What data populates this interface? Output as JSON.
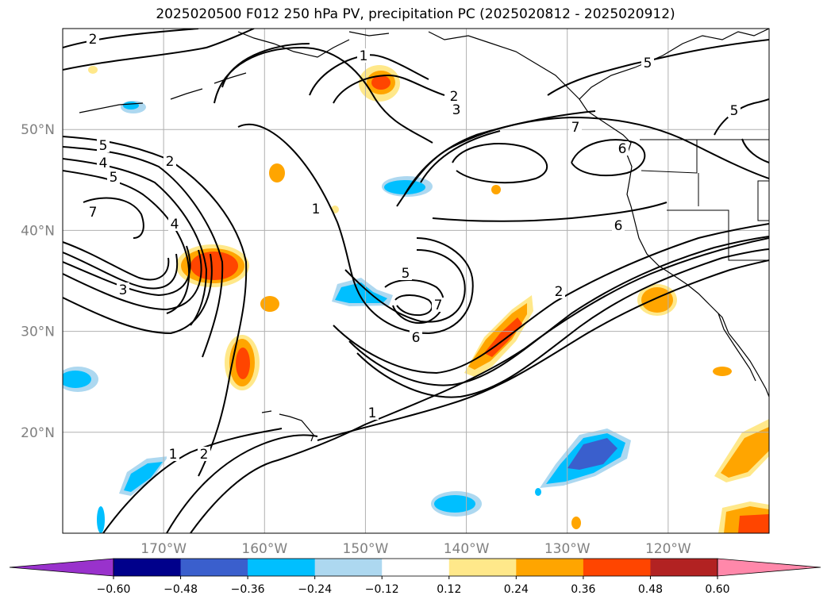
{
  "title": "2025020500 F012 250 hPa PV, precipitation PC (2025020812 - 2025020912)",
  "map": {
    "projection": "PlateCarree",
    "lon_range": [
      -180,
      -110
    ],
    "lat_range": [
      10,
      60
    ],
    "gridlines": true,
    "coastlines": true,
    "borders": true
  },
  "axes": {
    "lat_ticks": [
      {
        "value": 50,
        "label": "50°N"
      },
      {
        "value": 40,
        "label": "40°N"
      },
      {
        "value": 30,
        "label": "30°N"
      },
      {
        "value": 20,
        "label": "20°N"
      }
    ],
    "lon_ticks": [
      {
        "value": -170,
        "label": "170°W"
      },
      {
        "value": -160,
        "label": "160°W"
      },
      {
        "value": -150,
        "label": "150°W"
      },
      {
        "value": -140,
        "label": "140°W"
      },
      {
        "value": -130,
        "label": "130°W"
      },
      {
        "value": -120,
        "label": "120°W"
      }
    ]
  },
  "colorbar": {
    "levels": [
      -0.6,
      -0.48,
      -0.36,
      -0.24,
      -0.12,
      0.12,
      0.24,
      0.36,
      0.48,
      0.6
    ],
    "tick_labels": [
      "−0.60",
      "−0.48",
      "−0.36",
      "−0.24",
      "−0.12",
      "0.12",
      "0.24",
      "0.36",
      "0.48",
      "0.60"
    ],
    "colors": [
      "#9932cc",
      "#00008b",
      "#3a5fcd",
      "#00bfff",
      "#add8f0",
      "#ffffff",
      "#ffe88a",
      "#ffa500",
      "#ff4500",
      "#b22222",
      "#ff88aa"
    ],
    "extend": "both"
  },
  "contour_labels": [
    "2",
    "1",
    "5",
    "2",
    "3",
    "5",
    "7",
    "6",
    "5",
    "2",
    "4",
    "5",
    "1",
    "7",
    "6",
    "4",
    "5",
    "7",
    "6",
    "3",
    "2",
    "1",
    "1",
    "2"
  ],
  "shading_colors": {
    "orange_light": "#ffe88a",
    "orange": "#ffa500",
    "red_orange": "#ff4500",
    "blue_light": "#add8f0",
    "blue": "#00bfff",
    "blue_dark": "#3a5fcd"
  }
}
